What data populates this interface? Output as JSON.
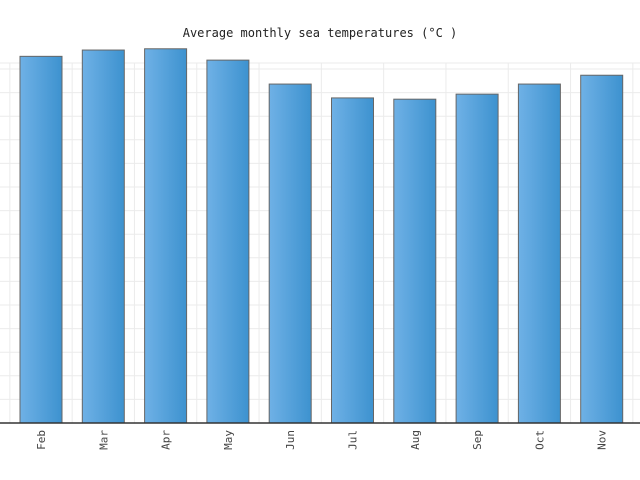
{
  "chart_data": {
    "type": "bar",
    "title": "Average monthly  sea temperatures (°C )",
    "categories": [
      "Feb",
      "Mar",
      "Apr",
      "May",
      "Jun",
      "Jul",
      "Aug",
      "Sep",
      "Oct",
      "Nov"
    ],
    "values": [
      29.1,
      29.6,
      29.7,
      28.8,
      26.9,
      25.8,
      25.7,
      26.1,
      26.9,
      27.6
    ],
    "ylim": [
      0,
      30
    ],
    "grid": true,
    "colors": {
      "bar_light": "#6fb1e6",
      "bar_dark": "#3d92cf",
      "bar_stroke": "#666666"
    }
  }
}
